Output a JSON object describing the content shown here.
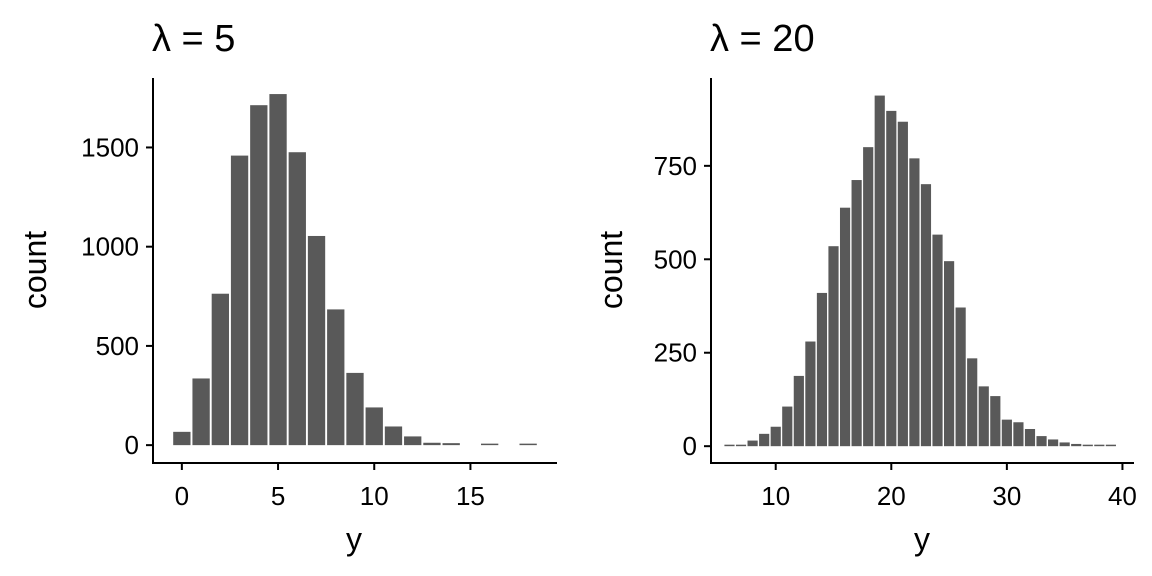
{
  "chart_data": [
    {
      "type": "bar",
      "title": "λ = 5",
      "xlabel": "y",
      "ylabel": "count",
      "xlim": [
        -1.5,
        19.5
      ],
      "ylim": [
        -90,
        1850
      ],
      "x_ticks": [
        0,
        5,
        10,
        15
      ],
      "y_ticks": [
        0,
        500,
        1000,
        1500
      ],
      "bar_color": "#595959",
      "x": [
        0,
        1,
        2,
        3,
        4,
        5,
        6,
        7,
        8,
        9,
        10,
        11,
        12,
        13,
        14,
        16,
        18
      ],
      "values": [
        67,
        336,
        763,
        1459,
        1713,
        1769,
        1476,
        1054,
        684,
        364,
        190,
        94,
        44,
        12,
        10,
        3,
        2
      ]
    },
    {
      "type": "bar",
      "title": "λ = 20",
      "xlabel": "y",
      "ylabel": "count",
      "xlim": [
        4.4,
        41.0
      ],
      "ylim": [
        -45,
        985
      ],
      "x_ticks": [
        10,
        20,
        30,
        40
      ],
      "y_ticks": [
        0,
        250,
        500,
        750
      ],
      "bar_color": "#595959",
      "x": [
        6,
        7,
        8,
        9,
        10,
        11,
        12,
        13,
        14,
        15,
        16,
        17,
        18,
        19,
        20,
        21,
        22,
        23,
        24,
        25,
        26,
        27,
        28,
        29,
        30,
        31,
        32,
        33,
        34,
        35,
        36,
        37,
        38,
        39
      ],
      "values": [
        2,
        4,
        15,
        33,
        52,
        106,
        188,
        280,
        410,
        535,
        638,
        712,
        800,
        938,
        897,
        868,
        770,
        701,
        566,
        495,
        371,
        235,
        160,
        134,
        71,
        64,
        46,
        27,
        18,
        10,
        6,
        3,
        2,
        1
      ]
    }
  ]
}
